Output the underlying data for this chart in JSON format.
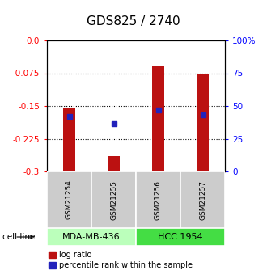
{
  "title": "GDS825 / 2740",
  "samples": [
    "GSM21254",
    "GSM21255",
    "GSM21256",
    "GSM21257"
  ],
  "log_ratios": [
    -0.155,
    -0.265,
    -0.058,
    -0.078
  ],
  "percentile_ranks": [
    0.42,
    0.365,
    0.47,
    0.435
  ],
  "cell_lines": [
    {
      "label": "MDA-MB-436",
      "samples": [
        0,
        1
      ],
      "color": "#bbffbb"
    },
    {
      "label": "HCC 1954",
      "samples": [
        2,
        3
      ],
      "color": "#44dd44"
    }
  ],
  "ylim_left": [
    -0.3,
    0.0
  ],
  "ylim_right": [
    0,
    100
  ],
  "yticks_left": [
    0.0,
    -0.075,
    -0.15,
    -0.225,
    -0.3
  ],
  "yticks_right": [
    100,
    75,
    50,
    25,
    0
  ],
  "bar_color": "#bb1111",
  "dot_color": "#2222bb",
  "bar_width": 0.28,
  "label_box_color": "#cccccc",
  "title_fontsize": 11,
  "tick_fontsize": 7.5,
  "label_fontsize": 6.5,
  "legend_fontsize": 7,
  "cell_fontsize": 8
}
